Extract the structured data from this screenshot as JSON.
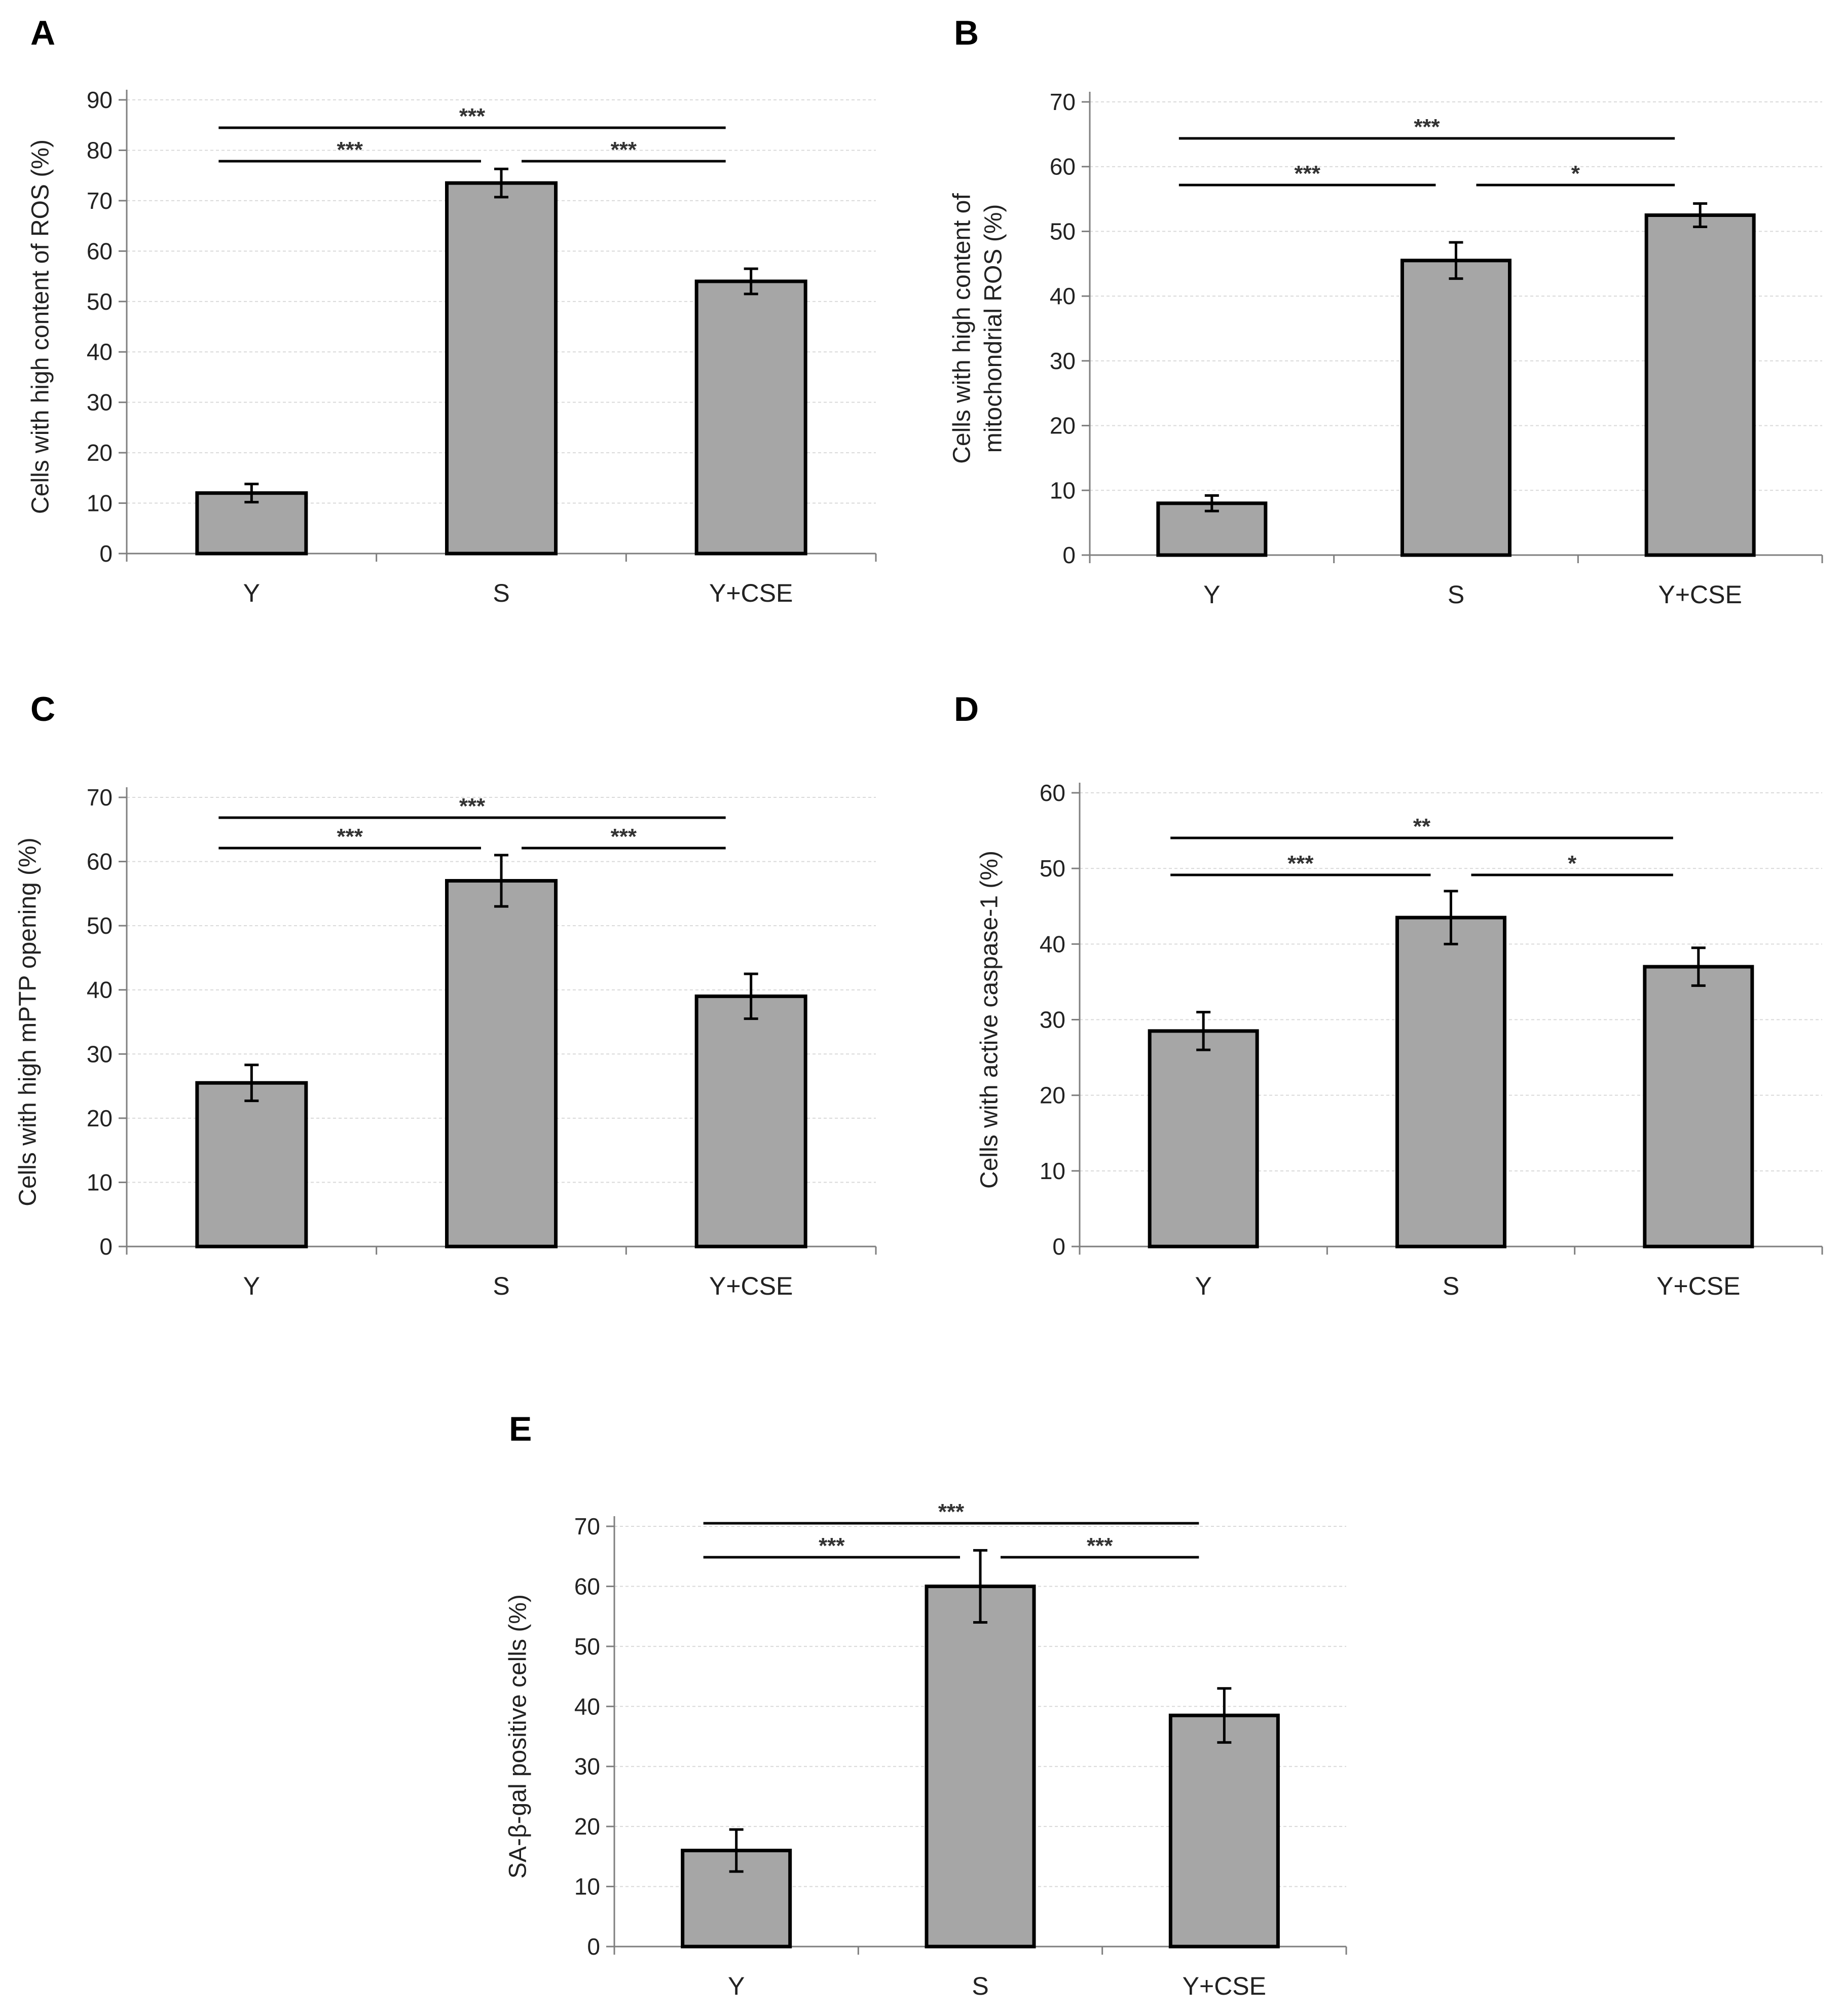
{
  "chart_data": [
    {
      "type": "bar",
      "panel": "A",
      "categories": [
        "Y",
        "S",
        "Y+CSE"
      ],
      "values": [
        12,
        73.5,
        54
      ],
      "errors": [
        1.8,
        2.8,
        2.5
      ],
      "ylabel": "Cells with high content of ROS (%)",
      "ylim": [
        0,
        90
      ],
      "yticks": [
        0,
        10,
        20,
        30,
        40,
        50,
        60,
        70,
        80,
        90
      ],
      "significance": [
        {
          "from": 0,
          "to": 1,
          "label": "***",
          "level": 1
        },
        {
          "from": 1,
          "to": 2,
          "label": "***",
          "level": 1
        },
        {
          "from": 0,
          "to": 2,
          "label": "***",
          "level": 2
        }
      ]
    },
    {
      "type": "bar",
      "panel": "B",
      "categories": [
        "Y",
        "S",
        "Y+CSE"
      ],
      "values": [
        8,
        45.5,
        52.5
      ],
      "errors": [
        1.2,
        2.8,
        1.8
      ],
      "ylabel": "Cells with high content of mitochondrial ROS (%)",
      "ylabel_lines": [
        "Cells with high content of",
        "mitochondrial ROS (%)"
      ],
      "ylim": [
        0,
        70
      ],
      "yticks": [
        0,
        10,
        20,
        30,
        40,
        50,
        60,
        70
      ],
      "significance": [
        {
          "from": 0,
          "to": 1,
          "label": "***",
          "level": 1
        },
        {
          "from": 1,
          "to": 2,
          "label": "*",
          "level": 1
        },
        {
          "from": 0,
          "to": 2,
          "label": "***",
          "level": 2
        }
      ]
    },
    {
      "type": "bar",
      "panel": "C",
      "categories": [
        "Y",
        "S",
        "Y+CSE"
      ],
      "values": [
        25.5,
        57,
        39
      ],
      "errors": [
        2.8,
        4,
        3.5
      ],
      "ylabel": "Cells with high mPTP opening (%)",
      "ylim": [
        0,
        70
      ],
      "yticks": [
        0,
        10,
        20,
        30,
        40,
        50,
        60,
        70
      ],
      "significance": [
        {
          "from": 0,
          "to": 1,
          "label": "***",
          "level": 1
        },
        {
          "from": 1,
          "to": 2,
          "label": "***",
          "level": 1
        },
        {
          "from": 0,
          "to": 2,
          "label": "***",
          "level": 2
        }
      ]
    },
    {
      "type": "bar",
      "panel": "D",
      "categories": [
        "Y",
        "S",
        "Y+CSE"
      ],
      "values": [
        28.5,
        43.5,
        37
      ],
      "errors": [
        2.5,
        3.5,
        2.5
      ],
      "ylabel": "Cells with active caspase-1 (%)",
      "ylim": [
        0,
        60
      ],
      "yticks": [
        0,
        10,
        20,
        30,
        40,
        50,
        60
      ],
      "significance": [
        {
          "from": 0,
          "to": 1,
          "label": "***",
          "level": 1
        },
        {
          "from": 1,
          "to": 2,
          "label": "*",
          "level": 1
        },
        {
          "from": 0,
          "to": 2,
          "label": "**",
          "level": 2
        }
      ]
    },
    {
      "type": "bar",
      "panel": "E",
      "categories": [
        "Y",
        "S",
        "Y+CSE"
      ],
      "values": [
        16,
        60,
        38.5
      ],
      "errors": [
        3.5,
        6,
        4.5
      ],
      "ylabel": "SA-β-gal positive cells (%)",
      "ylim": [
        0,
        70
      ],
      "yticks": [
        0,
        10,
        20,
        30,
        40,
        50,
        60,
        70
      ],
      "significance": [
        {
          "from": 0,
          "to": 1,
          "label": "***",
          "level": 1
        },
        {
          "from": 1,
          "to": 2,
          "label": "***",
          "level": 1
        },
        {
          "from": 0,
          "to": 2,
          "label": "***",
          "level": 2
        }
      ]
    }
  ]
}
